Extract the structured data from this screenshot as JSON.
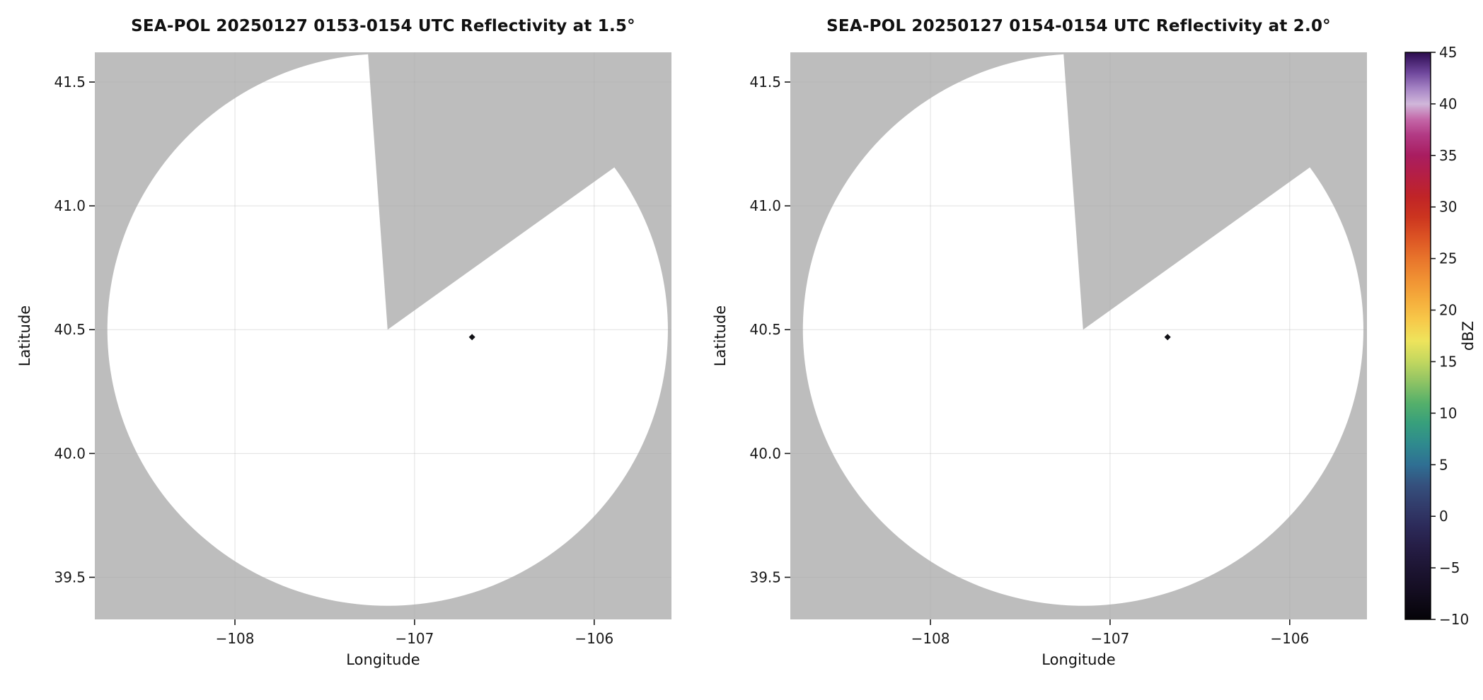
{
  "figure": {
    "background": "#ffffff",
    "plot_background": "#bdbdbd"
  },
  "chart_data": [
    {
      "type": "heatmap",
      "title": "SEA-POL 20250127 0153-0154 UTC Reflectivity at 1.5°",
      "xlabel": "Longitude",
      "ylabel": "Latitude",
      "xlim": [
        -108.78,
        -105.57
      ],
      "ylim": [
        39.33,
        41.62
      ],
      "xticks": [
        -108,
        -107,
        -106
      ],
      "xtick_labels": [
        "−108",
        "−107",
        "−106"
      ],
      "yticks": [
        39.5,
        40.0,
        40.5,
        41.0,
        41.5
      ],
      "ytick_labels": [
        "39.5",
        "40.0",
        "40.5",
        "41.0",
        "41.5"
      ],
      "grid": true,
      "plot_background": "#bdbdbd",
      "radar": {
        "center_lon": -107.15,
        "center_lat": 40.5,
        "radius_lon_deg": 1.56,
        "radius_lat_deg": 1.115,
        "coverage_color": "#ffffff",
        "missing_sector_az_start": 356,
        "missing_sector_az_end": 54
      },
      "echoes": [
        {
          "lon": -106.68,
          "lat": 40.47,
          "color": "#121217"
        }
      ]
    },
    {
      "type": "heatmap",
      "title": "SEA-POL 20250127 0154-0154 UTC Reflectivity at 2.0°",
      "xlabel": "Longitude",
      "ylabel": "Latitude",
      "xlim": [
        -108.78,
        -105.57
      ],
      "ylim": [
        39.33,
        41.62
      ],
      "xticks": [
        -108,
        -107,
        -106
      ],
      "xtick_labels": [
        "−108",
        "−107",
        "−106"
      ],
      "yticks": [
        39.5,
        40.0,
        40.5,
        41.0,
        41.5
      ],
      "ytick_labels": [
        "39.5",
        "40.0",
        "40.5",
        "41.0",
        "41.5"
      ],
      "grid": true,
      "plot_background": "#bdbdbd",
      "radar": {
        "center_lon": -107.15,
        "center_lat": 40.5,
        "radius_lon_deg": 1.56,
        "radius_lat_deg": 1.115,
        "coverage_color": "#ffffff",
        "missing_sector_az_start": 356,
        "missing_sector_az_end": 54
      },
      "echoes": [
        {
          "lon": -106.68,
          "lat": 40.47,
          "color": "#121217"
        }
      ]
    }
  ],
  "colorbar": {
    "label": "dBZ",
    "min": -10,
    "max": 45,
    "ticks": [
      45,
      40,
      35,
      30,
      25,
      20,
      15,
      10,
      5,
      0,
      -5,
      -10
    ],
    "tick_labels": [
      "45",
      "40",
      "35",
      "30",
      "25",
      "20",
      "15",
      "10",
      "5",
      "0",
      "−5",
      "−10"
    ],
    "border_color": "#000000",
    "stops": [
      {
        "v": -10,
        "c": "#050308"
      },
      {
        "v": -8.5,
        "c": "#0d0915"
      },
      {
        "v": -7,
        "c": "#150e23"
      },
      {
        "v": -5,
        "c": "#1d1533"
      },
      {
        "v": -3,
        "c": "#251d45"
      },
      {
        "v": -1,
        "c": "#2c2a59"
      },
      {
        "v": 1,
        "c": "#323c6b"
      },
      {
        "v": 3,
        "c": "#35507d"
      },
      {
        "v": 5,
        "c": "#2f6f93"
      },
      {
        "v": 7,
        "c": "#2f8a8e"
      },
      {
        "v": 9,
        "c": "#379f7c"
      },
      {
        "v": 11,
        "c": "#55b06a"
      },
      {
        "v": 13,
        "c": "#8ec364"
      },
      {
        "v": 15,
        "c": "#c2d75f"
      },
      {
        "v": 17,
        "c": "#eee45c"
      },
      {
        "v": 19,
        "c": "#f7c94a"
      },
      {
        "v": 21,
        "c": "#f5ad3c"
      },
      {
        "v": 23,
        "c": "#f09133"
      },
      {
        "v": 25,
        "c": "#e8742b"
      },
      {
        "v": 27,
        "c": "#dc5424"
      },
      {
        "v": 29,
        "c": "#cc351f"
      },
      {
        "v": 31,
        "c": "#c02427"
      },
      {
        "v": 33,
        "c": "#b51f44"
      },
      {
        "v": 35,
        "c": "#a91d60"
      },
      {
        "v": 37,
        "c": "#b23a84"
      },
      {
        "v": 38.5,
        "c": "#c467a8"
      },
      {
        "v": 40,
        "c": "#d0b7da"
      },
      {
        "v": 41.5,
        "c": "#a583c4"
      },
      {
        "v": 43,
        "c": "#70489d"
      },
      {
        "v": 44.5,
        "c": "#3d1a64"
      },
      {
        "v": 45,
        "c": "#2b0d4a"
      }
    ]
  }
}
